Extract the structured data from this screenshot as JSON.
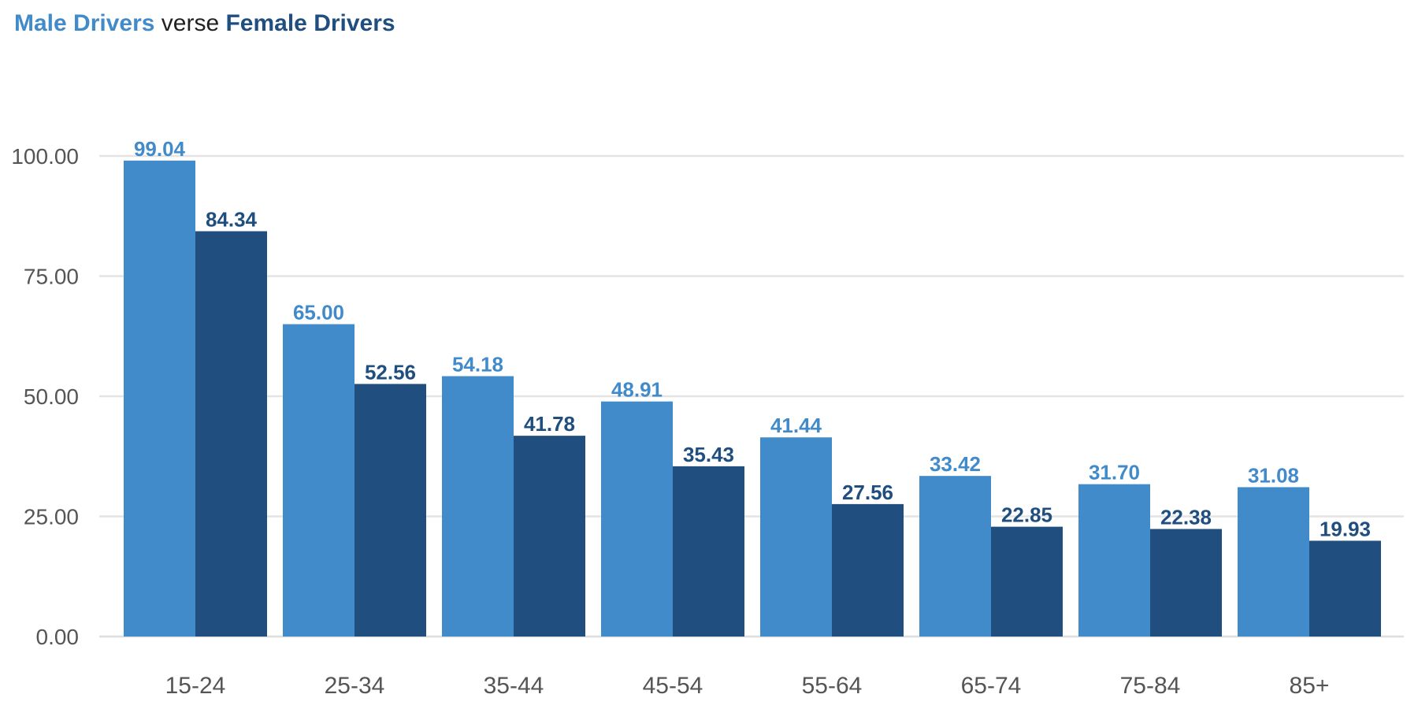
{
  "title": {
    "part1": "Male Drivers",
    "part2": " verse ",
    "part3": "Female Drivers"
  },
  "colors": {
    "male": "#428bca",
    "female": "#1f4e7f"
  },
  "chart_data": {
    "type": "bar",
    "categories": [
      "15-24",
      "25-34",
      "35-44",
      "45-54",
      "55-64",
      "65-74",
      "75-84",
      "85+"
    ],
    "series": [
      {
        "name": "Male Drivers",
        "values": [
          99.04,
          65.0,
          54.18,
          48.91,
          41.44,
          33.42,
          31.7,
          31.08
        ],
        "color": "#428bca"
      },
      {
        "name": "Female Drivers",
        "values": [
          84.34,
          52.56,
          41.78,
          35.43,
          27.56,
          22.85,
          22.38,
          19.93
        ],
        "color": "#1f4e7f"
      }
    ],
    "title": "Male Drivers verse Female Drivers",
    "xlabel": "",
    "ylabel": "",
    "ylim": [
      0,
      100
    ],
    "yticks": [
      "0.00",
      "25.00",
      "50.00",
      "75.00",
      "100.00"
    ],
    "grid": true,
    "legend": "none"
  }
}
